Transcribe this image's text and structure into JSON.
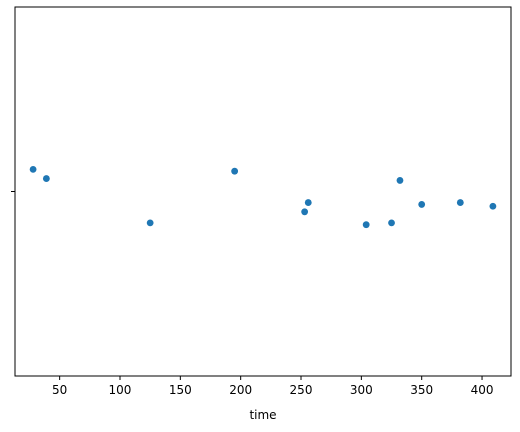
{
  "chart_data": {
    "type": "scatter",
    "title": "",
    "xlabel": "time",
    "ylabel": "",
    "xlim": [
      13,
      424
    ],
    "ylim": [
      -1,
      1
    ],
    "x_ticks": [
      50,
      100,
      150,
      200,
      250,
      300,
      350,
      400
    ],
    "x_tick_labels": [
      "50",
      "100",
      "150",
      "200",
      "250",
      "300",
      "350",
      "400"
    ],
    "y_ticks": [
      0
    ],
    "grid": false,
    "point_color": "#1f77b4",
    "points": [
      {
        "x": 28,
        "y": 0.12
      },
      {
        "x": 39,
        "y": 0.07
      },
      {
        "x": 125,
        "y": -0.17
      },
      {
        "x": 195,
        "y": 0.11
      },
      {
        "x": 253,
        "y": -0.11
      },
      {
        "x": 256,
        "y": -0.06
      },
      {
        "x": 304,
        "y": -0.18
      },
      {
        "x": 325,
        "y": -0.17
      },
      {
        "x": 332,
        "y": 0.06
      },
      {
        "x": 350,
        "y": -0.07
      },
      {
        "x": 382,
        "y": -0.06
      },
      {
        "x": 409,
        "y": -0.08
      }
    ]
  }
}
